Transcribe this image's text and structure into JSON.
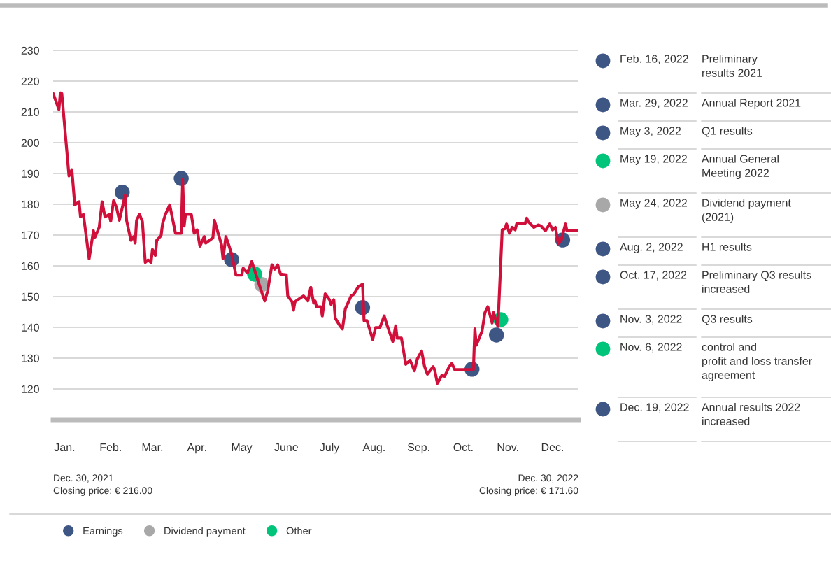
{
  "chart_data": {
    "type": "line",
    "xlim": [
      "2021-12-30",
      "2022-12-30"
    ],
    "xticks": [
      {
        "value": "2022-01-07",
        "label": "Jan."
      },
      {
        "value": "2022-02-08",
        "label": "Feb."
      },
      {
        "value": "2022-03-09",
        "label": "Mar."
      },
      {
        "value": "2022-04-09",
        "label": "Apr."
      },
      {
        "value": "2022-05-10",
        "label": "May"
      },
      {
        "value": "2022-06-10",
        "label": "June"
      },
      {
        "value": "2022-07-10",
        "label": "July"
      },
      {
        "value": "2022-08-10",
        "label": "Aug."
      },
      {
        "value": "2022-09-10",
        "label": "Sep."
      },
      {
        "value": "2022-10-11",
        "label": "Oct."
      },
      {
        "value": "2022-11-11",
        "label": "Nov."
      },
      {
        "value": "2022-12-12",
        "label": "Dec."
      }
    ],
    "ylim": [
      110,
      230
    ],
    "yticks": [
      120,
      130,
      140,
      150,
      160,
      170,
      180,
      190,
      200,
      210,
      220,
      230
    ],
    "grid": "y",
    "legend": "bottom",
    "series": [
      {
        "color": "#d0103a",
        "line_style": "solid",
        "x": [
          "2021-12-30",
          "2022-01-03",
          "2022-01-04",
          "2022-01-05",
          "2022-01-10",
          "2022-01-12",
          "2022-01-14",
          "2022-01-17",
          "2022-01-18",
          "2022-01-20",
          "2022-01-24",
          "2022-01-27",
          "2022-01-28",
          "2022-01-31",
          "2022-02-02",
          "2022-02-04",
          "2022-02-07",
          "2022-02-08",
          "2022-02-10",
          "2022-02-12",
          "2022-02-14",
          "2022-02-18",
          "2022-02-19",
          "2022-02-22",
          "2022-02-24",
          "2022-02-25",
          "2022-02-26",
          "2022-02-28",
          "2022-03-02",
          "2022-03-04",
          "2022-03-06",
          "2022-03-08",
          "2022-03-09",
          "2022-03-11",
          "2022-03-12",
          "2022-03-15",
          "2022-03-16",
          "2022-03-18",
          "2022-03-21",
          "2022-03-25",
          "2022-03-29",
          "2022-03-30",
          "2022-03-31",
          "2022-04-01",
          "2022-04-05",
          "2022-04-07",
          "2022-04-09",
          "2022-04-11",
          "2022-04-14",
          "2022-04-15",
          "2022-04-20",
          "2022-04-21",
          "2022-04-26",
          "2022-04-27",
          "2022-04-29",
          "2022-05-01",
          "2022-05-03",
          "2022-05-06",
          "2022-05-10",
          "2022-05-11",
          "2022-05-14",
          "2022-05-17",
          "2022-05-24",
          "2022-05-26",
          "2022-05-28",
          "2022-05-31",
          "2022-06-02",
          "2022-06-04",
          "2022-06-06",
          "2022-06-10",
          "2022-06-11",
          "2022-06-14",
          "2022-06-15",
          "2022-06-16",
          "2022-06-18",
          "2022-06-22",
          "2022-06-25",
          "2022-06-27",
          "2022-06-29",
          "2022-06-30",
          "2022-07-01",
          "2022-07-04",
          "2022-07-05",
          "2022-07-07",
          "2022-07-10",
          "2022-07-11",
          "2022-07-13",
          "2022-07-14",
          "2022-07-17",
          "2022-07-19",
          "2022-07-21",
          "2022-07-25",
          "2022-07-27",
          "2022-07-30",
          "2022-08-02",
          "2022-08-03",
          "2022-08-05",
          "2022-08-06",
          "2022-08-09",
          "2022-08-11",
          "2022-08-14",
          "2022-08-17",
          "2022-08-19",
          "2022-08-23",
          "2022-08-25",
          "2022-08-26",
          "2022-08-29",
          "2022-09-01",
          "2022-09-04",
          "2022-09-07",
          "2022-09-09",
          "2022-09-12",
          "2022-09-14",
          "2022-09-16",
          "2022-09-20",
          "2022-09-21",
          "2022-09-23",
          "2022-09-26",
          "2022-09-28",
          "2022-10-01",
          "2022-10-03",
          "2022-10-05",
          "2022-10-13",
          "2022-10-18",
          "2022-10-19",
          "2022-10-20",
          "2022-10-24",
          "2022-10-26",
          "2022-10-28",
          "2022-10-31",
          "2022-11-01",
          "2022-11-03",
          "2022-11-04",
          "2022-11-07",
          "2022-11-09",
          "2022-11-10",
          "2022-11-12",
          "2022-11-14",
          "2022-11-16",
          "2022-11-17",
          "2022-11-23",
          "2022-11-24",
          "2022-11-25",
          "2022-11-29",
          "2022-12-02",
          "2022-12-04",
          "2022-12-07",
          "2022-12-10",
          "2022-12-12",
          "2022-12-14",
          "2022-12-16",
          "2022-12-18",
          "2022-12-21",
          "2022-12-22",
          "2022-12-29",
          "2022-12-30"
        ],
        "values": [
          216.0,
          210.8,
          216.2,
          216.0,
          189.2,
          191.2,
          179.8,
          180.8,
          175.9,
          176.7,
          162.3,
          171.4,
          169.3,
          172.5,
          180.8,
          175.9,
          176.7,
          174.5,
          181.2,
          179.0,
          174.8,
          182.9,
          174.8,
          168.3,
          169.5,
          167.4,
          174.8,
          176.7,
          174.4,
          161.1,
          161.9,
          161.1,
          165.3,
          163.4,
          168.3,
          169.8,
          173.6,
          176.7,
          179.8,
          170.6,
          170.6,
          188.0,
          172.9,
          176.7,
          176.7,
          170.6,
          171.7,
          166.4,
          169.5,
          167.4,
          169.1,
          174.8,
          166.8,
          162.3,
          169.5,
          166.8,
          163.8,
          157.0,
          157.0,
          159.2,
          157.7,
          161.4,
          151.3,
          148.6,
          151.7,
          160.3,
          158.9,
          160.3,
          157.3,
          157.1,
          150.2,
          148.3,
          145.6,
          148.3,
          149.0,
          150.2,
          148.6,
          153.0,
          147.9,
          148.6,
          146.7,
          146.7,
          143.7,
          150.9,
          149.0,
          147.5,
          149.0,
          143.0,
          140.7,
          139.5,
          146.0,
          150.2,
          150.8,
          153.2,
          154.0,
          142.2,
          142.2,
          140.7,
          136.1,
          139.9,
          139.9,
          143.7,
          140.7,
          135.4,
          140.5,
          136.5,
          136.5,
          128.0,
          129.3,
          125.9,
          129.7,
          132.3,
          127.4,
          124.8,
          127.2,
          126.3,
          121.8,
          124.4,
          124.1,
          127.1,
          128.3,
          126.3,
          126.3,
          126.3,
          139.5,
          134.2,
          138.8,
          144.8,
          146.7,
          141.4,
          144.8,
          141.8,
          140.3,
          171.7,
          172.1,
          173.6,
          170.6,
          172.5,
          171.7,
          173.6,
          173.8,
          175.5,
          174.4,
          172.5,
          173.3,
          172.9,
          171.4,
          173.6,
          171.7,
          172.5,
          167.2,
          168.3,
          173.6,
          171.4,
          171.4,
          171.6
        ]
      },
      {
        "type": "scatter",
        "name": "Earnings",
        "color": "#3d5684",
        "marker": "circle",
        "x": [
          "2022-02-16",
          "2022-03-29",
          "2022-05-03",
          "2022-08-02",
          "2022-10-17",
          "2022-11-03",
          "2022-12-19"
        ],
        "values": [
          183.9,
          188.4,
          162.0,
          146.4,
          126.4,
          137.5,
          168.4
        ]
      },
      {
        "type": "scatter",
        "name": "Dividend payment",
        "color": "#a8a8a8",
        "marker": "circle",
        "x": [
          "2022-05-24"
        ],
        "values": [
          153.9
        ]
      },
      {
        "type": "scatter",
        "name": "Other",
        "color": "#00c47a",
        "marker": "circle",
        "x": [
          "2022-05-19",
          "2022-11-06"
        ],
        "values": [
          157.3,
          142.5
        ]
      }
    ],
    "annotations": [
      "Dec. 30, 2021\nClosing price: € 216.00",
      "Dec. 30, 2022\nClosing price: € 171.60",
      "Feb. 16, 2022",
      "Preliminary\nresults 2021",
      "Mar. 29, 2022",
      "Annual Report 2021",
      "May 3, 2022",
      "Q1 results",
      "May 19, 2022",
      "Annual General\nMeeting 2022",
      "May 24, 2022",
      "Dividend payment\n(2021)",
      "Aug. 2, 2022",
      "H1 results",
      "Oct. 17, 2022",
      "Preliminary Q3 results\nincreased",
      "Nov. 3, 2022",
      "Q3 results",
      "Nov. 6, 2022",
      "control and\nprofit and loss transfer\nagreement",
      "Dec. 19, 2022",
      "Annual results 2022\nincreased"
    ]
  }
}
